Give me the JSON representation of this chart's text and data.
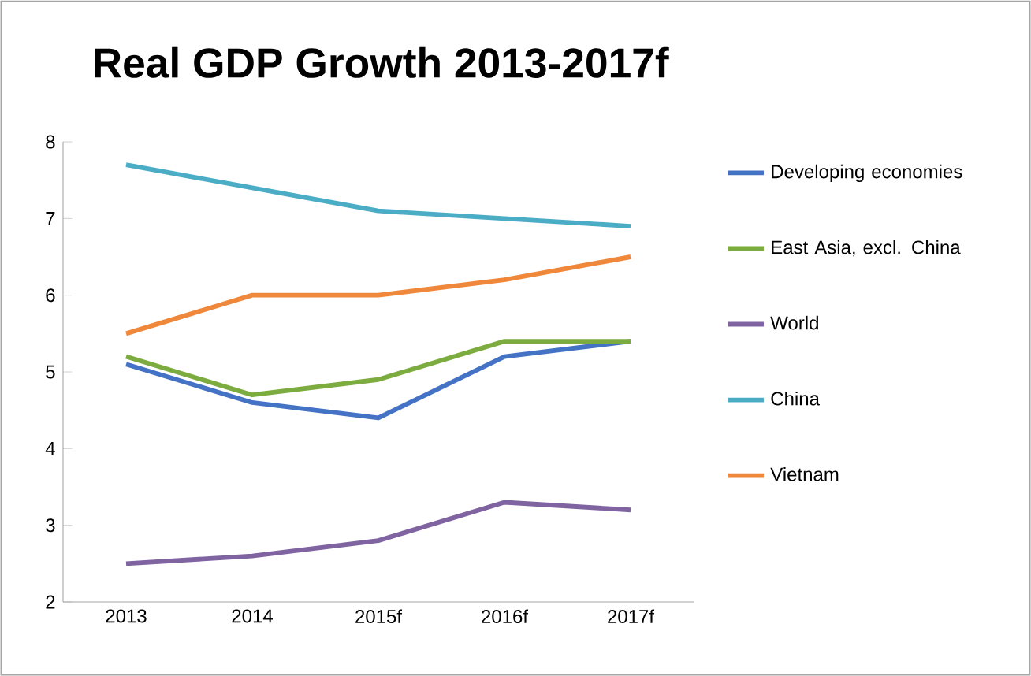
{
  "chart_data": {
    "type": "line",
    "title": "Real GDP Growth 2013-2017f",
    "categories": [
      "2013",
      "2014",
      "2015f",
      "2016f",
      "2017f"
    ],
    "series": [
      {
        "name": "Developing economies",
        "color": "#4472c4",
        "values": [
          5.1,
          4.6,
          4.4,
          5.2,
          5.4
        ]
      },
      {
        "name": "East Asia, excl. China",
        "color": "#7cac40",
        "values": [
          5.2,
          4.7,
          4.9,
          5.4,
          5.4
        ]
      },
      {
        "name": "World",
        "color": "#8064a2",
        "values": [
          2.5,
          2.6,
          2.8,
          3.3,
          3.2
        ]
      },
      {
        "name": "China",
        "color": "#4bacc6",
        "values": [
          7.7,
          7.4,
          7.1,
          7.0,
          6.9
        ]
      },
      {
        "name": "Vietnam",
        "color": "#f0883c",
        "values": [
          5.5,
          6.0,
          6.0,
          6.2,
          6.5
        ]
      }
    ],
    "ylim": [
      2,
      8
    ],
    "yticks": [
      2,
      3,
      4,
      5,
      6,
      7,
      8
    ],
    "legend": "right"
  }
}
